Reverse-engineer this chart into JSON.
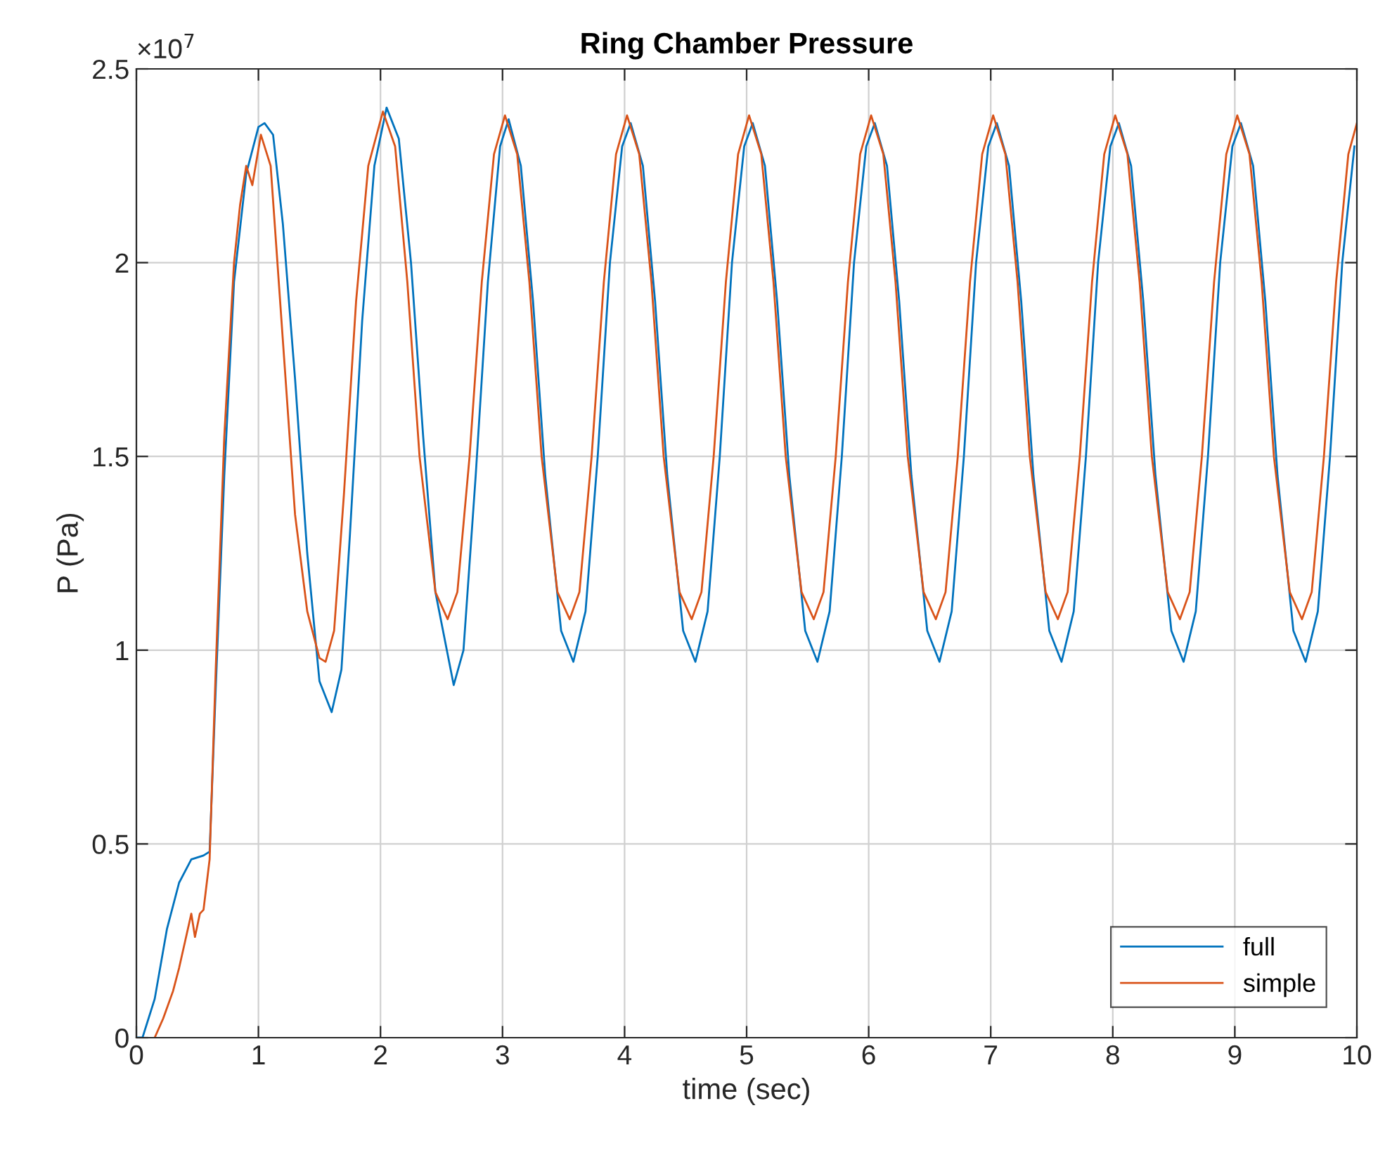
{
  "chart_data": {
    "type": "line",
    "title": "Ring Chamber Pressure",
    "xlabel": "time (sec)",
    "ylabel": "P (Pa)",
    "annotations": [
      "×10$^{7}$"
    ],
    "xlim": [
      0,
      10
    ],
    "xticks": [
      0,
      1,
      2,
      3,
      4,
      5,
      6,
      7,
      8,
      9,
      10
    ],
    "ylim": [
      0,
      2.5
    ],
    "yticks": [
      0,
      0.5,
      1,
      1.5,
      2,
      2.5
    ],
    "grid": true,
    "legend": "bottom right",
    "line_style": "solid",
    "marker": "none",
    "series": [
      {
        "name": "full",
        "color": "#0072bd",
        "x": [
          0,
          0.05,
          0.15,
          0.25,
          0.35,
          0.45,
          0.55,
          0.6,
          0.65,
          0.72,
          0.8,
          0.9,
          1.0,
          1.05,
          1.12,
          1.2,
          1.3,
          1.4,
          1.5,
          1.6,
          1.68,
          1.75,
          1.85,
          1.95,
          2.05,
          2.15,
          2.25,
          2.35,
          2.45,
          2.6,
          2.68,
          2.78,
          2.88,
          2.98,
          3.05,
          3.15,
          3.25,
          3.35,
          3.48,
          3.58,
          3.68,
          3.78,
          3.88,
          3.98,
          4.05,
          4.15,
          4.25,
          4.35,
          4.48,
          4.58,
          4.68,
          4.78,
          4.88,
          4.98,
          5.05,
          5.15,
          5.25,
          5.35,
          5.48,
          5.58,
          5.68,
          5.78,
          5.88,
          5.98,
          6.05,
          6.15,
          6.25,
          6.35,
          6.48,
          6.58,
          6.68,
          6.78,
          6.88,
          6.98,
          7.05,
          7.15,
          7.25,
          7.35,
          7.48,
          7.58,
          7.68,
          7.78,
          7.88,
          7.98,
          8.05,
          8.15,
          8.25,
          8.35,
          8.48,
          8.58,
          8.68,
          8.78,
          8.88,
          8.98,
          9.05,
          9.15,
          9.25,
          9.35,
          9.48,
          9.58,
          9.68,
          9.78,
          9.88,
          9.98
        ],
        "values": [
          0,
          0,
          0.1,
          0.28,
          0.4,
          0.46,
          0.47,
          0.48,
          0.9,
          1.45,
          1.95,
          2.23,
          2.35,
          2.36,
          2.33,
          2.1,
          1.7,
          1.25,
          0.92,
          0.84,
          0.95,
          1.3,
          1.85,
          2.25,
          2.4,
          2.32,
          2.0,
          1.55,
          1.15,
          0.91,
          1.0,
          1.45,
          1.95,
          2.3,
          2.37,
          2.25,
          1.9,
          1.45,
          1.05,
          0.97,
          1.1,
          1.5,
          2.0,
          2.3,
          2.36,
          2.25,
          1.9,
          1.45,
          1.05,
          0.97,
          1.1,
          1.5,
          2.0,
          2.3,
          2.36,
          2.25,
          1.9,
          1.45,
          1.05,
          0.97,
          1.1,
          1.5,
          2.0,
          2.3,
          2.36,
          2.25,
          1.9,
          1.45,
          1.05,
          0.97,
          1.1,
          1.5,
          2.0,
          2.3,
          2.36,
          2.25,
          1.9,
          1.45,
          1.05,
          0.97,
          1.1,
          1.5,
          2.0,
          2.3,
          2.36,
          2.25,
          1.9,
          1.45,
          1.05,
          0.97,
          1.1,
          1.5,
          2.0,
          2.3,
          2.36,
          2.25,
          1.9,
          1.45,
          1.05,
          0.97,
          1.1,
          1.5,
          2.0,
          2.3
        ]
      },
      {
        "name": "simple",
        "color": "#d95319",
        "x": [
          0.15,
          0.22,
          0.3,
          0.35,
          0.4,
          0.45,
          0.48,
          0.52,
          0.55,
          0.6,
          0.65,
          0.72,
          0.8,
          0.85,
          0.9,
          0.95,
          1.02,
          1.1,
          1.2,
          1.3,
          1.4,
          1.5,
          1.55,
          1.62,
          1.7,
          1.8,
          1.9,
          2.02,
          2.12,
          2.22,
          2.32,
          2.45,
          2.55,
          2.63,
          2.73,
          2.83,
          2.93,
          3.02,
          3.12,
          3.22,
          3.32,
          3.45,
          3.55,
          3.63,
          3.73,
          3.83,
          3.93,
          4.02,
          4.12,
          4.22,
          4.32,
          4.45,
          4.55,
          4.63,
          4.73,
          4.83,
          4.93,
          5.02,
          5.12,
          5.22,
          5.32,
          5.45,
          5.55,
          5.63,
          5.73,
          5.83,
          5.93,
          6.02,
          6.12,
          6.22,
          6.32,
          6.45,
          6.55,
          6.63,
          6.73,
          6.83,
          6.93,
          7.02,
          7.12,
          7.22,
          7.32,
          7.45,
          7.55,
          7.63,
          7.73,
          7.83,
          7.93,
          8.02,
          8.12,
          8.22,
          8.32,
          8.45,
          8.55,
          8.63,
          8.73,
          8.83,
          8.93,
          9.02,
          9.12,
          9.22,
          9.32,
          9.45,
          9.55,
          9.63,
          9.73,
          9.83,
          9.93,
          10.0
        ],
        "values": [
          0,
          0.05,
          0.12,
          0.18,
          0.25,
          0.32,
          0.26,
          0.32,
          0.33,
          0.46,
          0.95,
          1.55,
          2.0,
          2.15,
          2.25,
          2.2,
          2.33,
          2.25,
          1.8,
          1.35,
          1.1,
          0.98,
          0.97,
          1.05,
          1.4,
          1.9,
          2.25,
          2.39,
          2.3,
          1.95,
          1.5,
          1.15,
          1.08,
          1.15,
          1.5,
          1.95,
          2.28,
          2.38,
          2.28,
          1.95,
          1.5,
          1.15,
          1.08,
          1.15,
          1.5,
          1.95,
          2.28,
          2.38,
          2.28,
          1.95,
          1.5,
          1.15,
          1.08,
          1.15,
          1.5,
          1.95,
          2.28,
          2.38,
          2.28,
          1.95,
          1.5,
          1.15,
          1.08,
          1.15,
          1.5,
          1.95,
          2.28,
          2.38,
          2.28,
          1.95,
          1.5,
          1.15,
          1.08,
          1.15,
          1.5,
          1.95,
          2.28,
          2.38,
          2.28,
          1.95,
          1.5,
          1.15,
          1.08,
          1.15,
          1.5,
          1.95,
          2.28,
          2.38,
          2.28,
          1.95,
          1.5,
          1.15,
          1.08,
          1.15,
          1.5,
          1.95,
          2.28,
          2.38,
          2.28,
          1.95,
          1.5,
          1.15,
          1.08,
          1.15,
          1.5,
          1.95,
          2.28,
          2.36
        ]
      }
    ]
  }
}
